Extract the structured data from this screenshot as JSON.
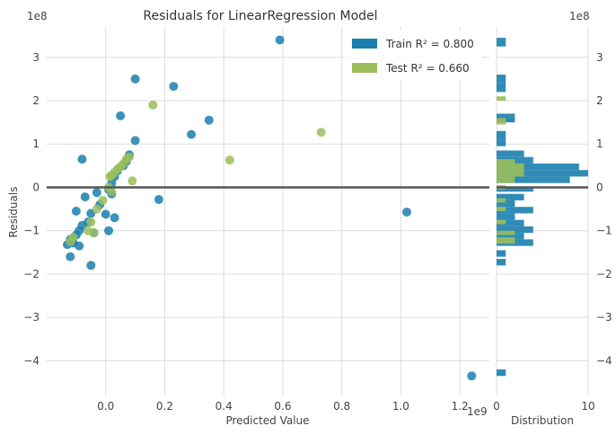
{
  "chart_data": {
    "type": "scatter",
    "title": "Residuals for LinearRegression Model",
    "xlabel": "Predicted Value",
    "ylabel": "Residuals",
    "x_scale_label": "1e9",
    "y_scale_label": "1e8",
    "xlim": [
      -0.2,
      1.3
    ],
    "ylim": [
      -4.8,
      3.7
    ],
    "x_ticks": [
      "0.0",
      "0.2",
      "0.4",
      "0.6",
      "0.8",
      "1.0",
      "1.2"
    ],
    "x_tick_values": [
      0.0,
      0.2,
      0.4,
      0.6,
      0.8,
      1.0,
      1.2
    ],
    "y_ticks": [
      "−4",
      "−3",
      "−2",
      "−1",
      "0",
      "1",
      "2",
      "3"
    ],
    "y_tick_values": [
      -4,
      -3,
      -2,
      -1,
      0,
      1,
      2,
      3
    ],
    "grid": true,
    "legend_position": "top-right",
    "zero_line": 0,
    "series": [
      {
        "name": "Train",
        "legend_label": "Train R² = 0.800",
        "color": "#1a7fae",
        "points": [
          [
            0.59,
            3.4
          ],
          [
            0.1,
            2.5
          ],
          [
            0.23,
            2.33
          ],
          [
            0.05,
            1.65
          ],
          [
            0.35,
            1.55
          ],
          [
            0.29,
            1.22
          ],
          [
            0.1,
            1.08
          ],
          [
            -0.08,
            0.65
          ],
          [
            0.08,
            0.75
          ],
          [
            0.07,
            0.6
          ],
          [
            0.06,
            0.5
          ],
          [
            0.04,
            0.38
          ],
          [
            0.03,
            0.25
          ],
          [
            0.02,
            0.1
          ],
          [
            0.01,
            -0.05
          ],
          [
            0.02,
            -0.15
          ],
          [
            -0.03,
            -0.12
          ],
          [
            0.18,
            -0.28
          ],
          [
            -0.07,
            -0.22
          ],
          [
            -0.02,
            -0.4
          ],
          [
            -0.1,
            -0.55
          ],
          [
            -0.05,
            -0.6
          ],
          [
            0.0,
            -0.62
          ],
          [
            0.03,
            -0.7
          ],
          [
            -0.06,
            -0.8
          ],
          [
            -0.08,
            -0.88
          ],
          [
            -0.09,
            -1.0
          ],
          [
            0.01,
            -1.0
          ],
          [
            -0.04,
            -1.05
          ],
          [
            -0.1,
            -1.1
          ],
          [
            -0.12,
            -1.2
          ],
          [
            -0.13,
            -1.32
          ],
          [
            -0.11,
            -1.28
          ],
          [
            -0.09,
            -1.35
          ],
          [
            -0.12,
            -1.6
          ],
          [
            -0.05,
            -1.8
          ],
          [
            1.02,
            -0.57
          ],
          [
            1.24,
            -4.35
          ]
        ],
        "histogram": [
          {
            "bin": [
              3.25,
              3.45
            ],
            "count": 1
          },
          {
            "bin": [
              2.4,
              2.6
            ],
            "count": 1
          },
          {
            "bin": [
              2.2,
              2.4
            ],
            "count": 1
          },
          {
            "bin": [
              1.5,
              1.7
            ],
            "count": 2
          },
          {
            "bin": [
              1.1,
              1.3
            ],
            "count": 1
          },
          {
            "bin": [
              0.95,
              1.1
            ],
            "count": 1
          },
          {
            "bin": [
              0.7,
              0.85
            ],
            "count": 3
          },
          {
            "bin": [
              0.55,
              0.7
            ],
            "count": 4
          },
          {
            "bin": [
              0.4,
              0.55
            ],
            "count": 9
          },
          {
            "bin": [
              0.25,
              0.4
            ],
            "count": 10
          },
          {
            "bin": [
              0.1,
              0.25
            ],
            "count": 8
          },
          {
            "bin": [
              -0.1,
              0.0
            ],
            "count": 4
          },
          {
            "bin": [
              -0.3,
              -0.15
            ],
            "count": 3
          },
          {
            "bin": [
              -0.45,
              -0.3
            ],
            "count": 2
          },
          {
            "bin": [
              -0.6,
              -0.45
            ],
            "count": 4
          },
          {
            "bin": [
              -0.75,
              -0.6
            ],
            "count": 2
          },
          {
            "bin": [
              -0.9,
              -0.75
            ],
            "count": 3
          },
          {
            "bin": [
              -1.05,
              -0.9
            ],
            "count": 4
          },
          {
            "bin": [
              -1.2,
              -1.05
            ],
            "count": 3
          },
          {
            "bin": [
              -1.35,
              -1.2
            ],
            "count": 4
          },
          {
            "bin": [
              -1.6,
              -1.45
            ],
            "count": 1
          },
          {
            "bin": [
              -1.8,
              -1.65
            ],
            "count": 1
          },
          {
            "bin": [
              -4.35,
              -4.2
            ],
            "count": 1
          }
        ]
      },
      {
        "name": "Test",
        "legend_label": "Test R² = 0.660",
        "color": "#9bbe5a",
        "points": [
          [
            0.16,
            1.9
          ],
          [
            0.73,
            1.27
          ],
          [
            0.42,
            0.63
          ],
          [
            0.08,
            0.7
          ],
          [
            0.07,
            0.65
          ],
          [
            0.06,
            0.55
          ],
          [
            0.05,
            0.48
          ],
          [
            0.04,
            0.42
          ],
          [
            0.03,
            0.35
          ],
          [
            0.02,
            0.28
          ],
          [
            0.015,
            0.25
          ],
          [
            0.09,
            0.15
          ],
          [
            0.01,
            0.0
          ],
          [
            0.02,
            -0.1
          ],
          [
            -0.01,
            -0.3
          ],
          [
            -0.03,
            -0.5
          ],
          [
            -0.05,
            -0.8
          ],
          [
            -0.04,
            -1.05
          ],
          [
            -0.12,
            -1.25
          ],
          [
            -0.11,
            -1.15
          ],
          [
            -0.06,
            -1.0
          ]
        ],
        "histogram": [
          {
            "bin": [
              2.0,
              2.1
            ],
            "count": 1
          },
          {
            "bin": [
              1.45,
              1.6
            ],
            "count": 1
          },
          {
            "bin": [
              0.55,
              0.65
            ],
            "count": 2
          },
          {
            "bin": [
              0.4,
              0.55
            ],
            "count": 3
          },
          {
            "bin": [
              0.25,
              0.4
            ],
            "count": 3
          },
          {
            "bin": [
              0.1,
              0.25
            ],
            "count": 2
          },
          {
            "bin": [
              -0.05,
              0.05
            ],
            "count": 1
          },
          {
            "bin": [
              -0.35,
              -0.25
            ],
            "count": 1
          },
          {
            "bin": [
              -0.55,
              -0.45
            ],
            "count": 1
          },
          {
            "bin": [
              -0.85,
              -0.75
            ],
            "count": 1
          },
          {
            "bin": [
              -1.1,
              -1.0
            ],
            "count": 2
          },
          {
            "bin": [
              -1.3,
              -1.15
            ],
            "count": 2
          }
        ]
      }
    ],
    "distribution": {
      "xlabel": "Distribution",
      "xlim": [
        0,
        10
      ],
      "x_ticks": [
        "0",
        "10"
      ],
      "x_tick_values": [
        0,
        10
      ],
      "y_scale_label": "1e8",
      "y_ticks": [
        "−4",
        "−3",
        "−2",
        "−1",
        "0",
        "1",
        "2",
        "3"
      ]
    }
  }
}
